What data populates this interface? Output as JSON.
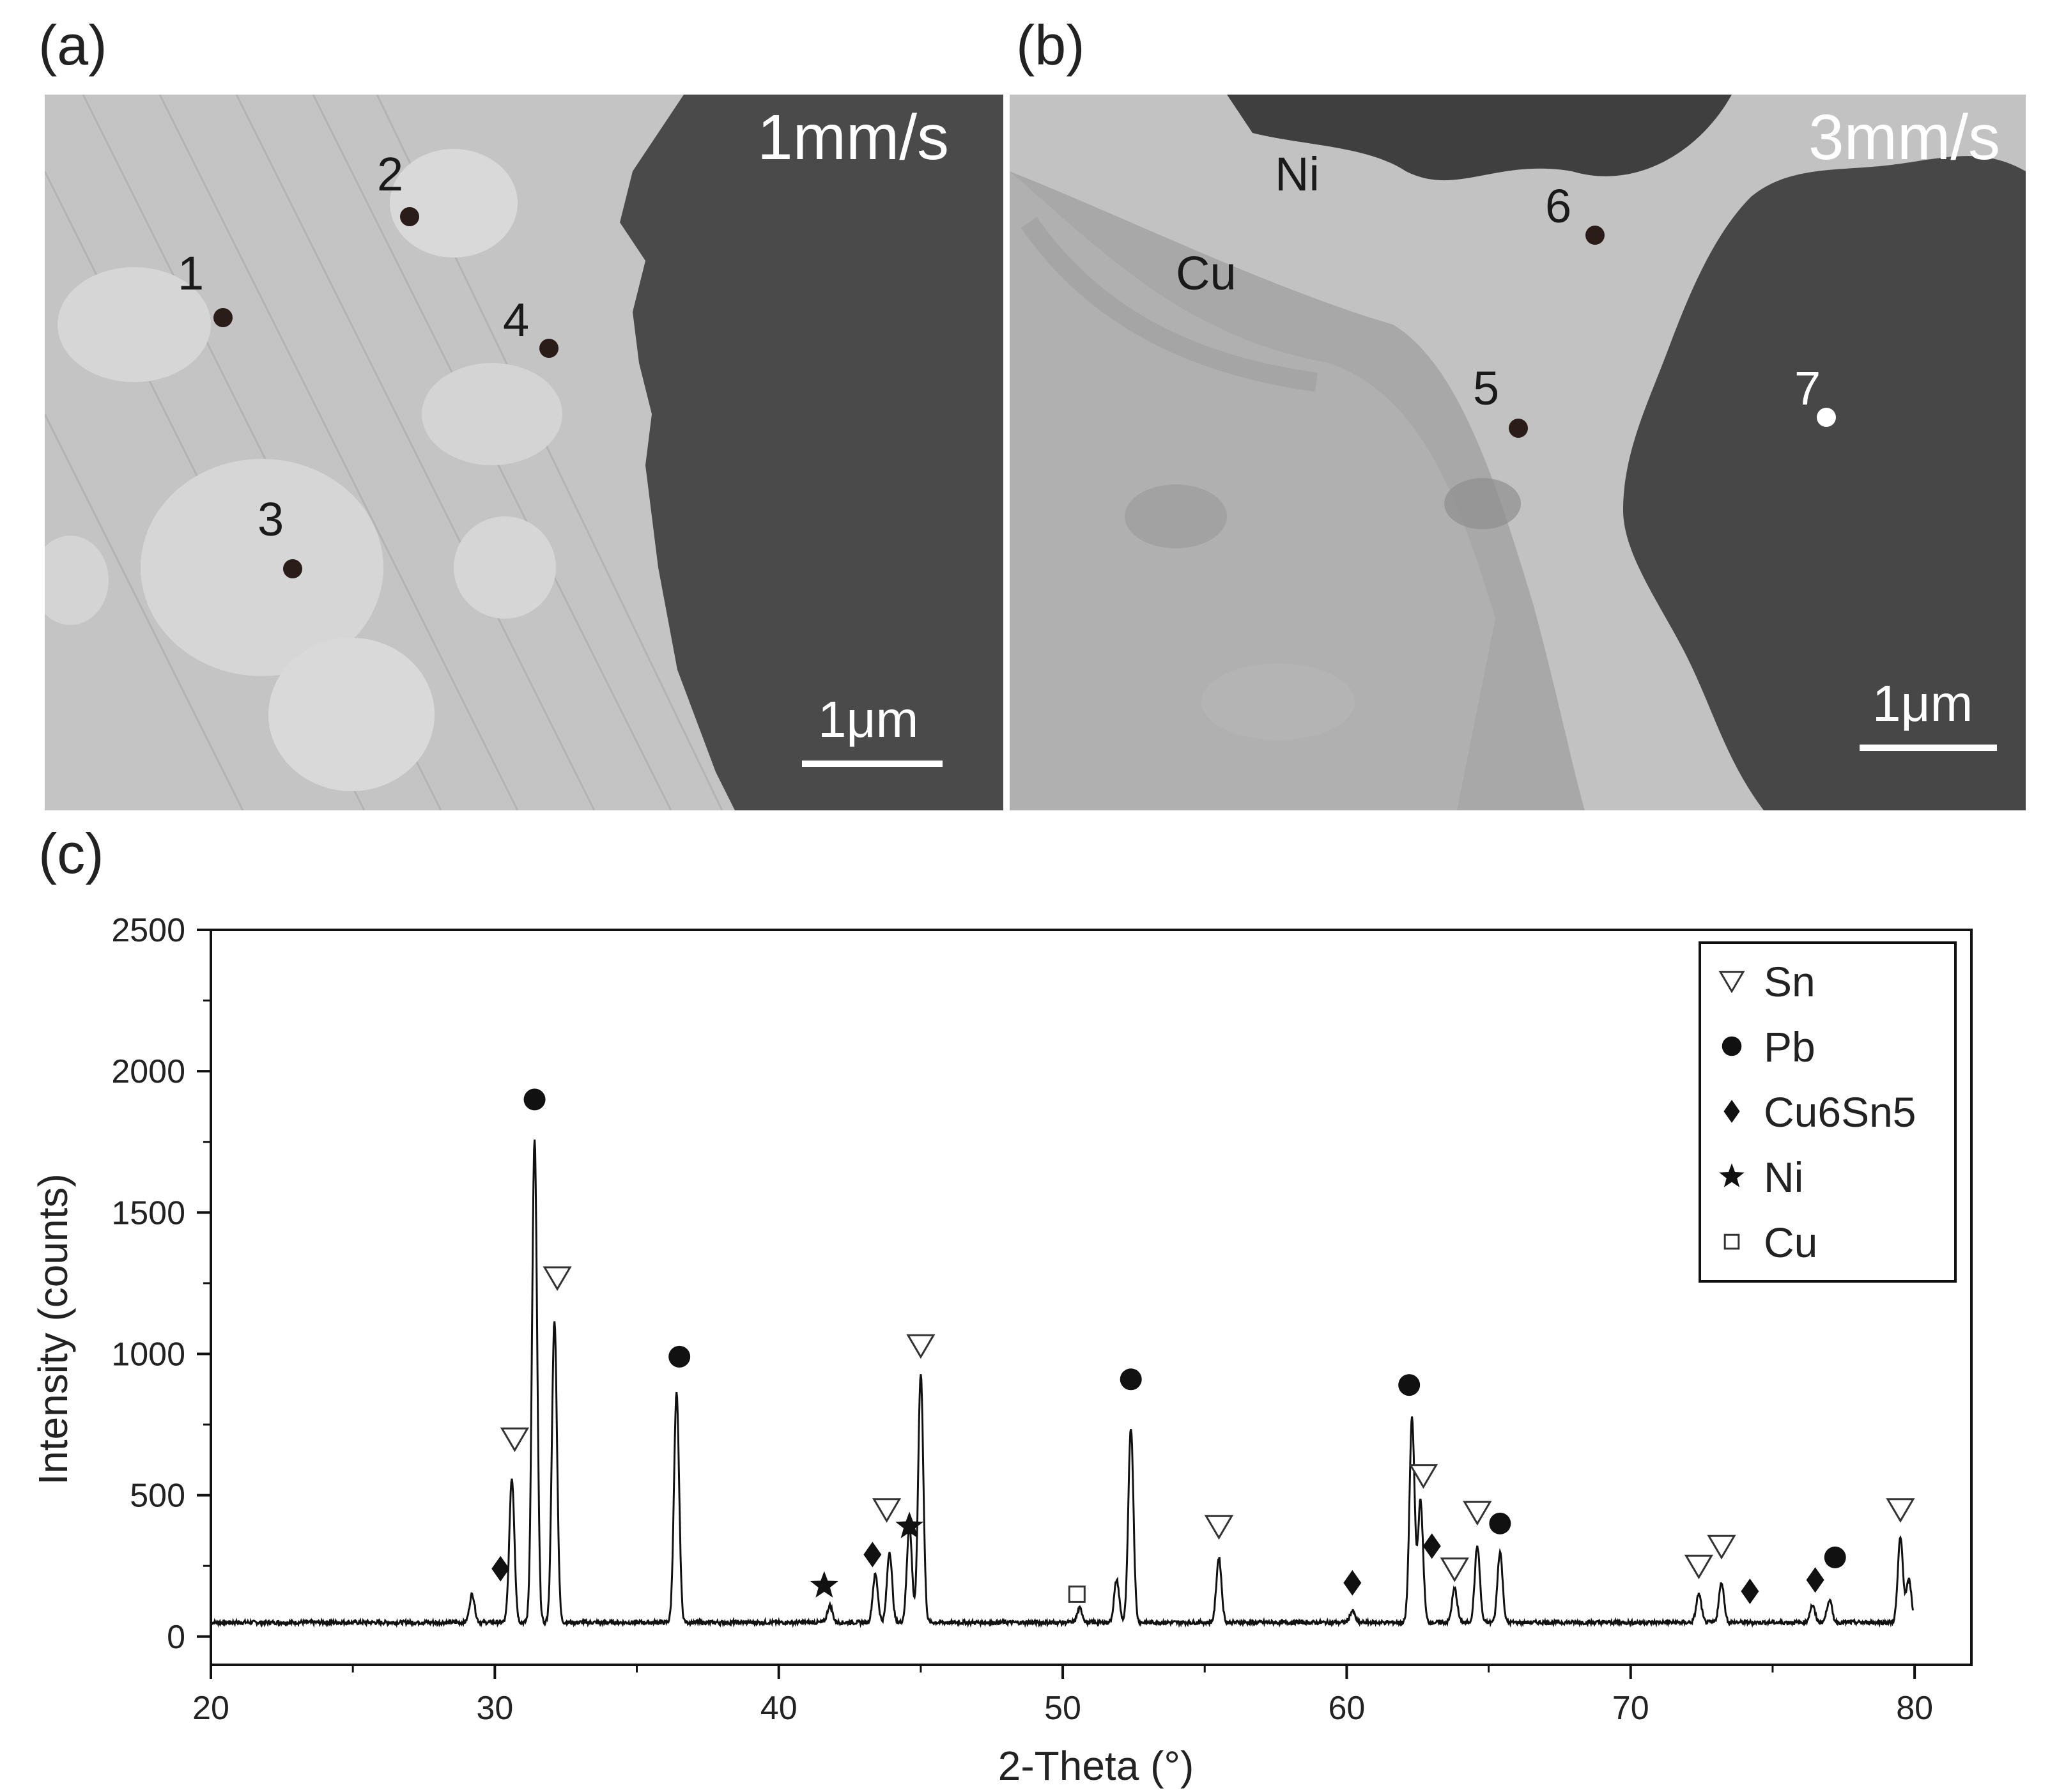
{
  "panels": {
    "a": {
      "label": "(a)",
      "speed": "1mm/s",
      "scale": "1μm",
      "points": [
        "1",
        "2",
        "3",
        "4"
      ]
    },
    "b": {
      "label": "(b)",
      "speed": "3mm/s",
      "scale": "1μm",
      "points": [
        "5",
        "6",
        "7"
      ],
      "phases": [
        "Ni",
        "Cu"
      ]
    },
    "c": {
      "label": "(c)"
    }
  },
  "chart_data": {
    "type": "line",
    "xlabel": "2-Theta (°)",
    "ylabel": "Intensity (counts)",
    "xlim": [
      20,
      82
    ],
    "ylim": [
      -100,
      2500
    ],
    "xticks": [
      20,
      30,
      40,
      50,
      60,
      70,
      80
    ],
    "yticks": [
      0,
      500,
      1000,
      1500,
      2000,
      2500
    ],
    "legend_position": "top-right",
    "legend": [
      {
        "symbol": "down-triangle-open",
        "name": "Sn"
      },
      {
        "symbol": "circle-filled",
        "name": "Pb"
      },
      {
        "symbol": "diamond-filled",
        "name": "Cu6Sn5"
      },
      {
        "symbol": "star-filled",
        "name": "Ni"
      },
      {
        "symbol": "square-open",
        "name": "Cu"
      }
    ],
    "baseline": 50,
    "peaks": [
      {
        "x": 29.2,
        "y": 150
      },
      {
        "x": 30.6,
        "y": 560
      },
      {
        "x": 31.4,
        "y": 1760
      },
      {
        "x": 32.1,
        "y": 1120
      },
      {
        "x": 36.4,
        "y": 860
      },
      {
        "x": 41.8,
        "y": 110
      },
      {
        "x": 43.4,
        "y": 220
      },
      {
        "x": 43.9,
        "y": 300
      },
      {
        "x": 44.6,
        "y": 390
      },
      {
        "x": 45.0,
        "y": 930
      },
      {
        "x": 50.6,
        "y": 100
      },
      {
        "x": 51.9,
        "y": 200
      },
      {
        "x": 52.4,
        "y": 740
      },
      {
        "x": 55.5,
        "y": 280
      },
      {
        "x": 60.2,
        "y": 90
      },
      {
        "x": 62.3,
        "y": 770
      },
      {
        "x": 62.6,
        "y": 480
      },
      {
        "x": 63.8,
        "y": 170
      },
      {
        "x": 64.6,
        "y": 320
      },
      {
        "x": 65.4,
        "y": 300
      },
      {
        "x": 72.4,
        "y": 150
      },
      {
        "x": 73.2,
        "y": 190
      },
      {
        "x": 76.4,
        "y": 110
      },
      {
        "x": 77.0,
        "y": 130
      },
      {
        "x": 79.5,
        "y": 350
      },
      {
        "x": 79.8,
        "y": 200
      }
    ],
    "annotations": [
      {
        "x": 30.2,
        "y": 240,
        "phase": "Cu6Sn5"
      },
      {
        "x": 30.7,
        "y": 700,
        "phase": "Sn"
      },
      {
        "x": 31.4,
        "y": 1900,
        "phase": "Pb"
      },
      {
        "x": 32.2,
        "y": 1270,
        "phase": "Sn"
      },
      {
        "x": 36.5,
        "y": 990,
        "phase": "Pb"
      },
      {
        "x": 41.6,
        "y": 180,
        "phase": "Ni"
      },
      {
        "x": 43.3,
        "y": 290,
        "phase": "Cu6Sn5"
      },
      {
        "x": 43.8,
        "y": 450,
        "phase": "Sn"
      },
      {
        "x": 44.6,
        "y": 390,
        "phase": "Ni"
      },
      {
        "x": 45.0,
        "y": 1030,
        "phase": "Sn"
      },
      {
        "x": 50.5,
        "y": 150,
        "phase": "Cu"
      },
      {
        "x": 52.4,
        "y": 910,
        "phase": "Pb"
      },
      {
        "x": 55.5,
        "y": 390,
        "phase": "Sn"
      },
      {
        "x": 60.2,
        "y": 190,
        "phase": "Cu6Sn5"
      },
      {
        "x": 62.2,
        "y": 890,
        "phase": "Pb"
      },
      {
        "x": 62.7,
        "y": 570,
        "phase": "Sn"
      },
      {
        "x": 63.0,
        "y": 320,
        "phase": "Cu6Sn5"
      },
      {
        "x": 63.8,
        "y": 240,
        "phase": "Sn"
      },
      {
        "x": 64.6,
        "y": 440,
        "phase": "Sn"
      },
      {
        "x": 65.4,
        "y": 400,
        "phase": "Pb"
      },
      {
        "x": 72.4,
        "y": 250,
        "phase": "Sn"
      },
      {
        "x": 73.2,
        "y": 320,
        "phase": "Sn"
      },
      {
        "x": 74.2,
        "y": 160,
        "phase": "Cu6Sn5"
      },
      {
        "x": 76.5,
        "y": 200,
        "phase": "Cu6Sn5"
      },
      {
        "x": 77.2,
        "y": 280,
        "phase": "Pb"
      },
      {
        "x": 79.5,
        "y": 450,
        "phase": "Sn"
      }
    ]
  }
}
